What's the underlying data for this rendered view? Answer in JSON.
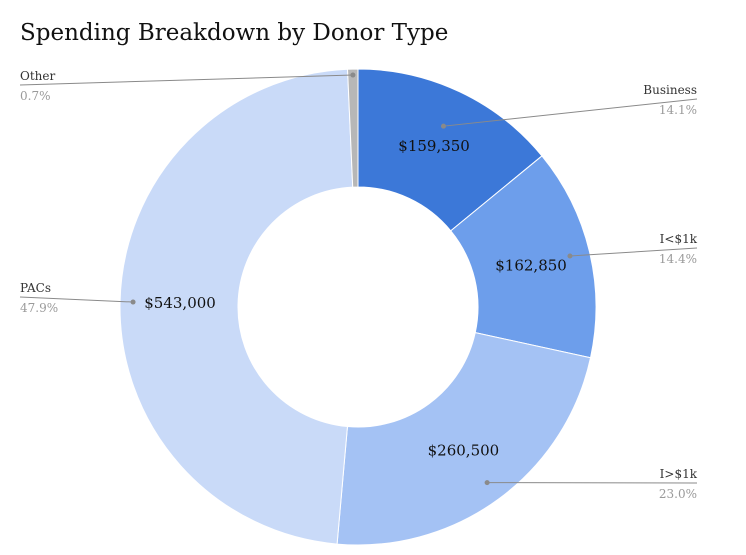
{
  "chart_data": {
    "type": "pie",
    "title": "Spending Breakdown by Donor Type",
    "hole": "donut",
    "slices": [
      {
        "name": "Business",
        "value": 159350,
        "label": "$159,350",
        "percent_label": "14.1%",
        "color": "#3c78d8"
      },
      {
        "name": "I<$1k",
        "value": 162850,
        "label": "$162,850",
        "percent_label": "14.4%",
        "color": "#6d9eeb"
      },
      {
        "name": "I>$1k",
        "value": 260500,
        "label": "$260,500",
        "percent_label": "23.0%",
        "color": "#a4c2f4"
      },
      {
        "name": "PACs",
        "value": 543000,
        "label": "$543,000",
        "percent_label": "47.9%",
        "color": "#c9daf8"
      },
      {
        "name": "Other",
        "value": 7935,
        "label": "",
        "percent_label": "0.7%",
        "color": "#b7b7b7"
      }
    ]
  }
}
